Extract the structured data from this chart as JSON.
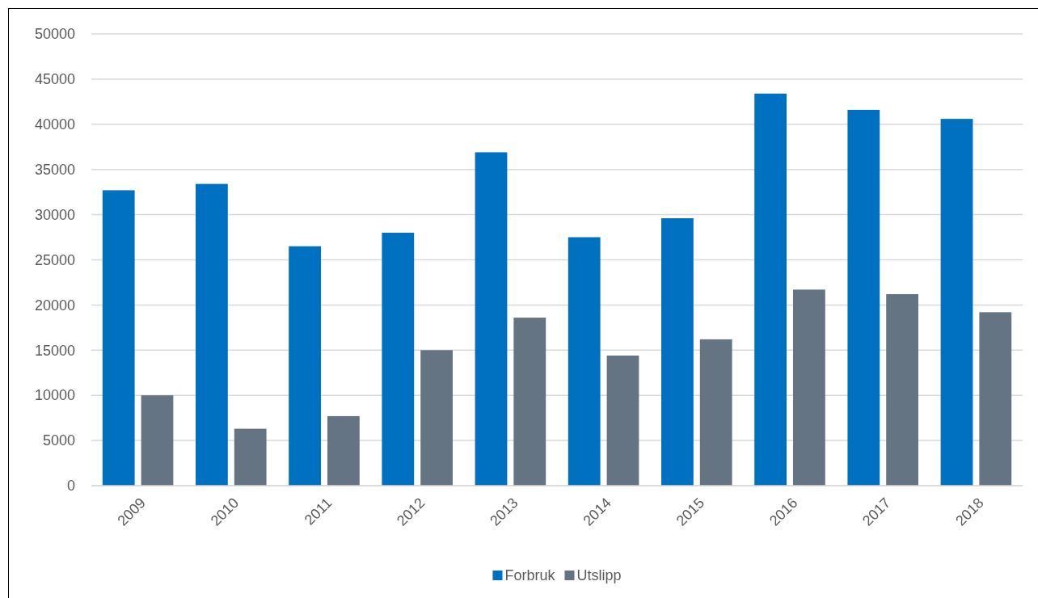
{
  "chart_data": {
    "type": "bar",
    "categories": [
      "2009",
      "2010",
      "2011",
      "2012",
      "2013",
      "2014",
      "2015",
      "2016",
      "2017",
      "2018"
    ],
    "series": [
      {
        "name": "Forbruk",
        "color": "#0070c0",
        "values": [
          32700,
          33400,
          26500,
          28000,
          36900,
          27500,
          29600,
          43400,
          41600,
          40600
        ]
      },
      {
        "name": "Utslipp",
        "color": "#657482",
        "values": [
          10000,
          6300,
          7700,
          15000,
          18600,
          14400,
          16200,
          21700,
          21200,
          19200
        ]
      }
    ],
    "ylim": [
      0,
      50000
    ],
    "yticks": [
      0,
      5000,
      10000,
      15000,
      20000,
      25000,
      30000,
      35000,
      40000,
      45000,
      50000
    ],
    "grid": "y",
    "legend": "bottom"
  }
}
